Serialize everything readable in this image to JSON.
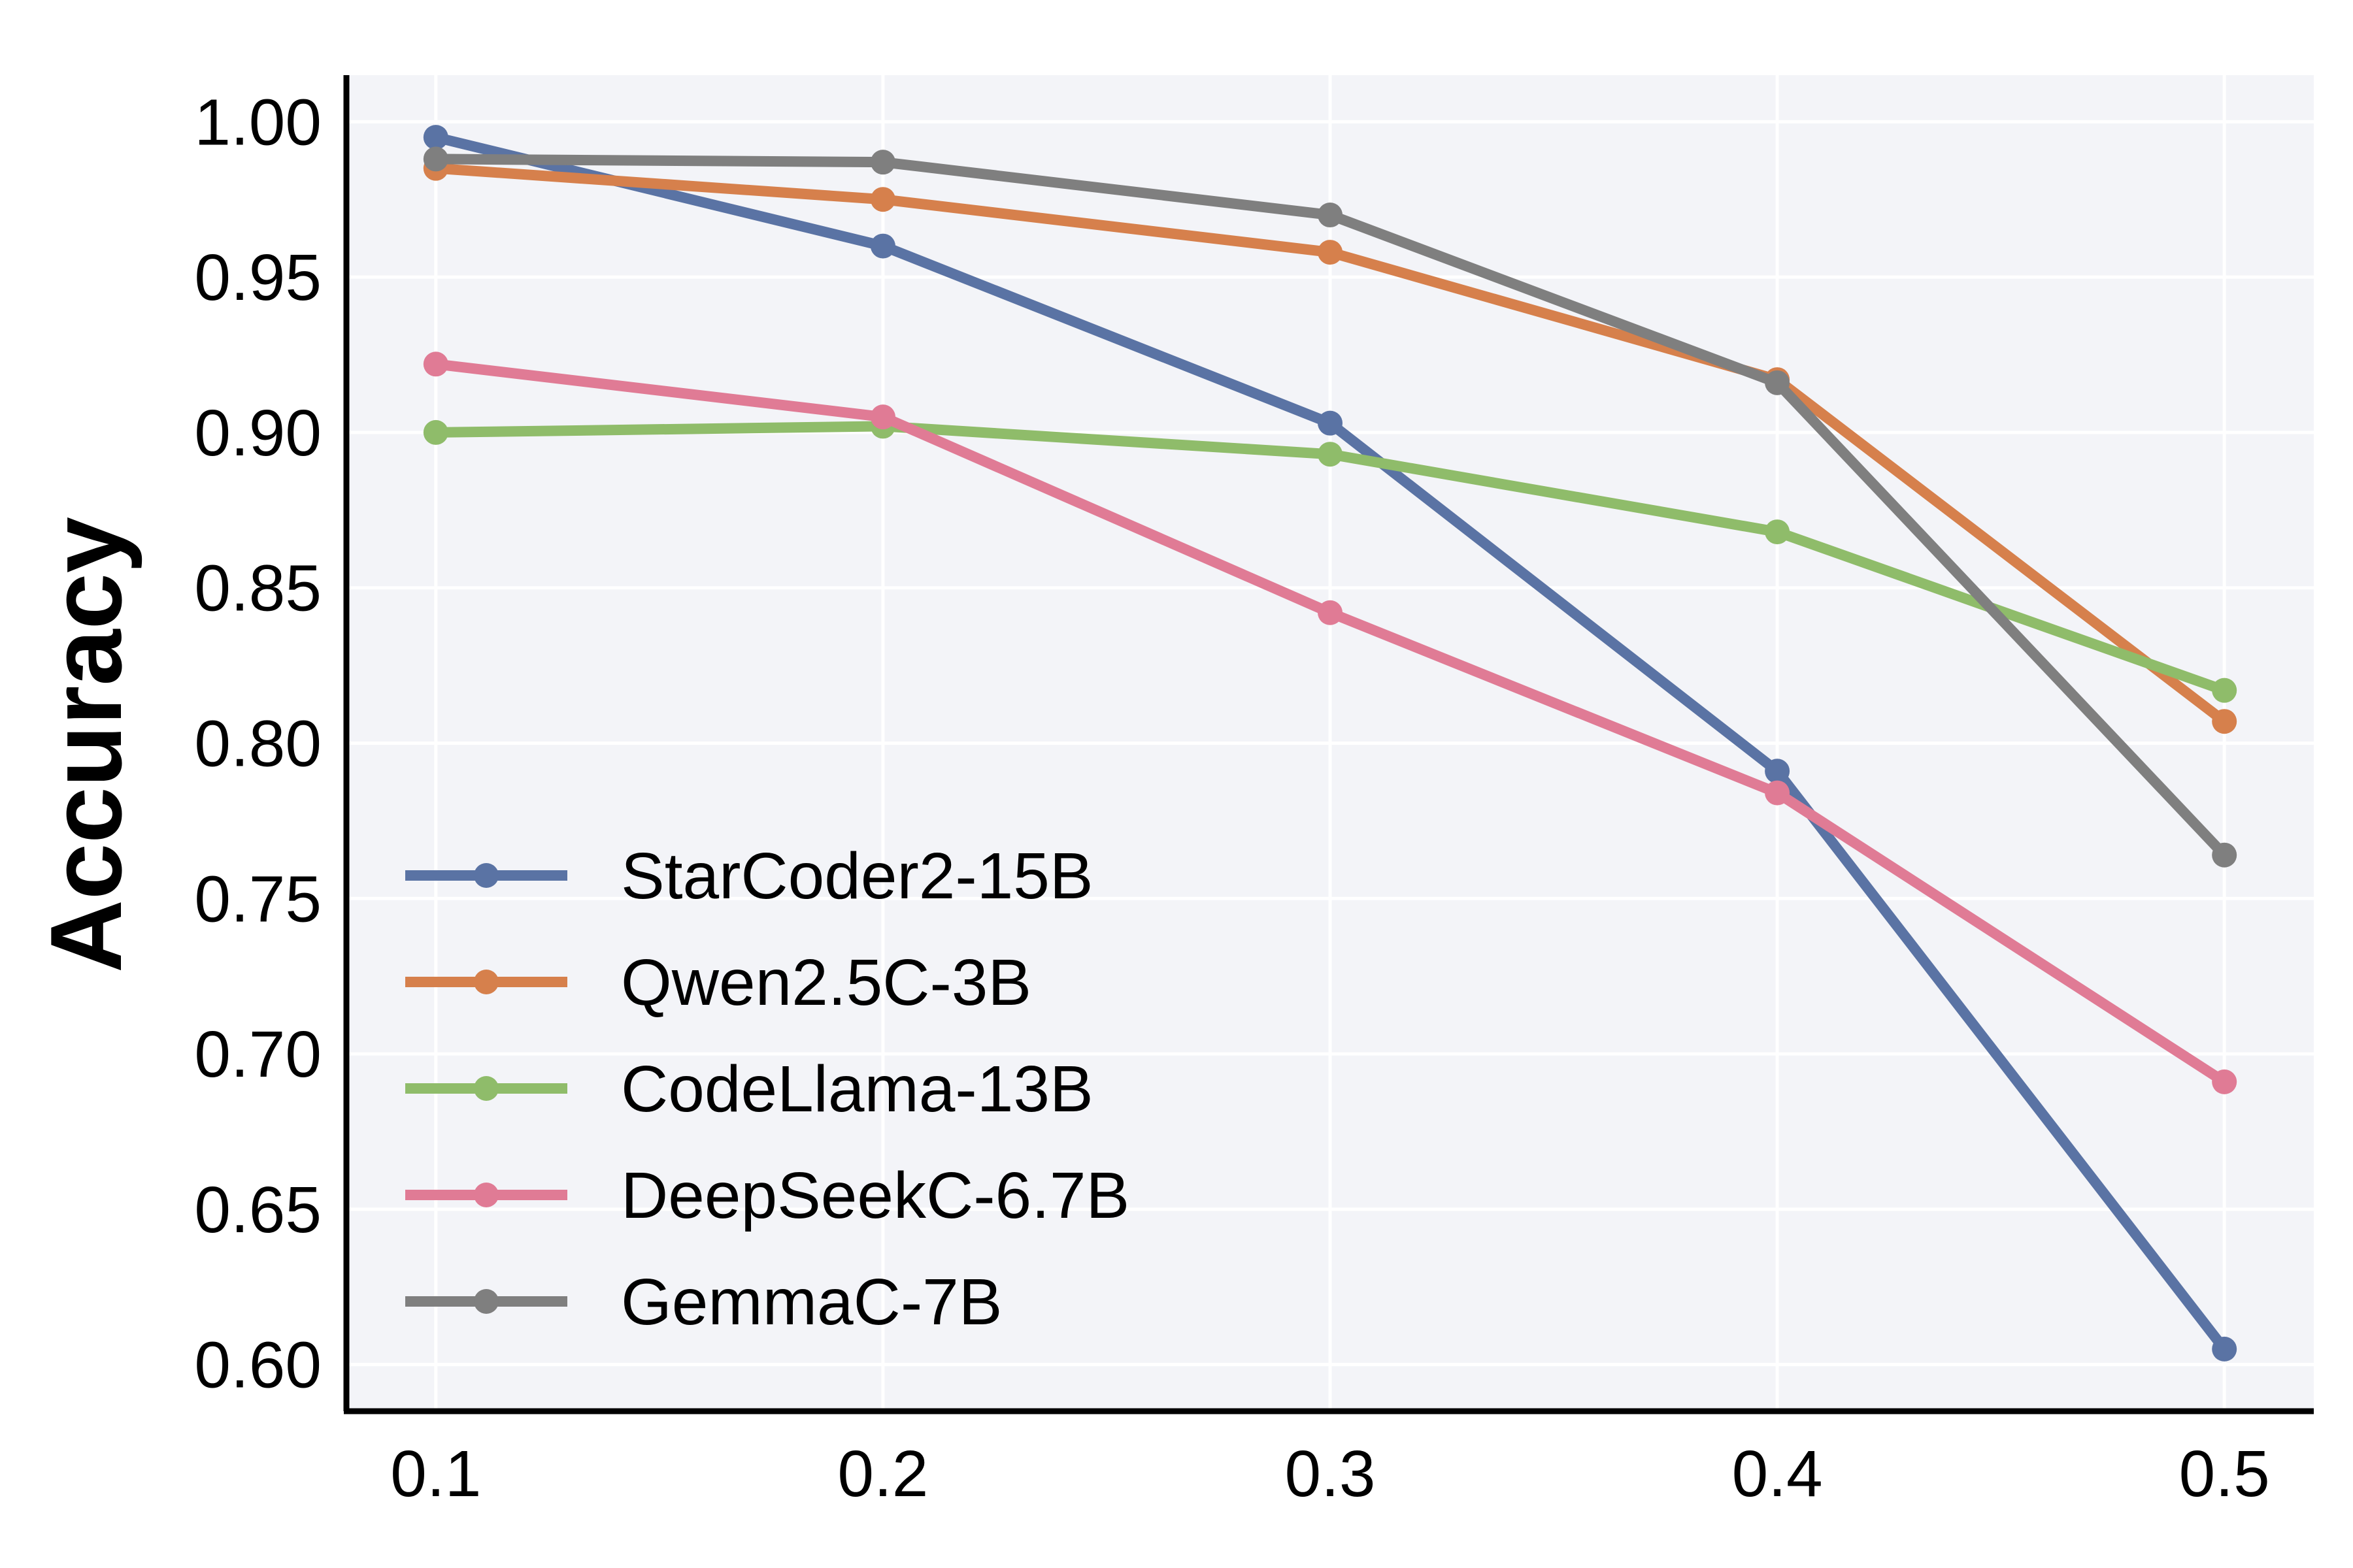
{
  "chart_data": {
    "type": "line",
    "title": "",
    "xlabel": "",
    "ylabel": "Accuracy",
    "x": [
      0.1,
      0.2,
      0.3,
      0.4,
      0.5
    ],
    "x_tick_labels": [
      "0.1",
      "0.2",
      "0.3",
      "0.4",
      "0.5"
    ],
    "y_tick_values": [
      0.6,
      0.65,
      0.7,
      0.75,
      0.8,
      0.85,
      0.9,
      0.95,
      1.0
    ],
    "y_tick_labels": [
      "0.60",
      "0.65",
      "0.70",
      "0.75",
      "0.80",
      "0.85",
      "0.90",
      "0.95",
      "1.00"
    ],
    "xlim": [
      0.08,
      0.52
    ],
    "ylim": [
      0.585,
      1.015
    ],
    "grid": true,
    "legend_position": "lower-left",
    "background_color": "#f3f4f8",
    "series": [
      {
        "name": "StarCoder2-15B",
        "color": "#5a73a4",
        "values": [
          0.995,
          0.96,
          0.903,
          0.791,
          0.605
        ]
      },
      {
        "name": "Qwen2.5C-3B",
        "color": "#d6804c",
        "values": [
          0.985,
          0.975,
          0.958,
          0.917,
          0.807
        ]
      },
      {
        "name": "CodeLlama-13B",
        "color": "#8fbc6a",
        "values": [
          0.9,
          0.902,
          0.893,
          0.868,
          0.817
        ]
      },
      {
        "name": "DeepSeekC-6.7B",
        "color": "#e07b95",
        "values": [
          0.922,
          0.905,
          0.842,
          0.784,
          0.691
        ]
      },
      {
        "name": "GemmaC-7B",
        "color": "#7f7f7f",
        "values": [
          0.988,
          0.987,
          0.97,
          0.916,
          0.764
        ]
      }
    ]
  }
}
